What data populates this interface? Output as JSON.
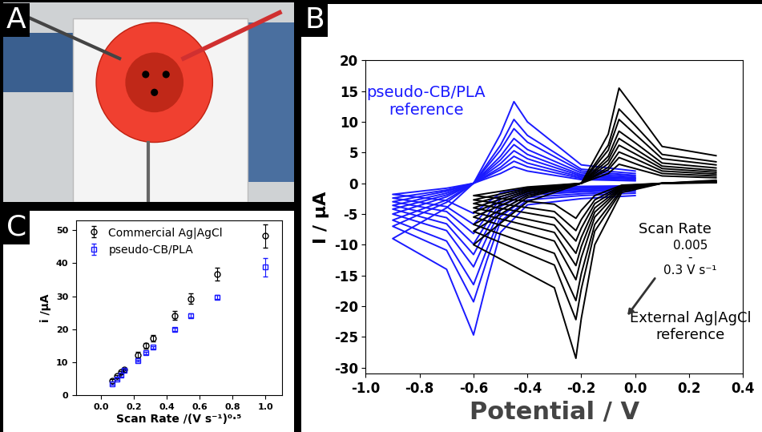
{
  "panel_labels": [
    "A",
    "B",
    "C"
  ],
  "chart_data": [
    {
      "type": "line",
      "x_label": "Potential / V",
      "y_label": "I / µA",
      "xlim": [
        -1.0,
        0.4
      ],
      "xticks": [
        -1.0,
        -0.8,
        -0.6,
        -0.4,
        -0.2,
        0.0,
        0.2,
        0.4
      ],
      "ylim": [
        -31,
        20
      ],
      "yticks": [
        -30,
        -25,
        -20,
        -15,
        -10,
        -5,
        0,
        5,
        10,
        15,
        20
      ],
      "annotations": [
        {
          "text": "pseudo-CB/PLA\nreference",
          "color": "#1a1aff"
        },
        {
          "text": "Scan Rate",
          "color": "#000000"
        },
        {
          "text": "0.005",
          "color": "#000000"
        },
        {
          "text": "-",
          "color": "#000000"
        },
        {
          "text": "0.3 V s⁻¹",
          "color": "#000000"
        },
        {
          "text": "External Ag|AgCl\nreference",
          "color": "#000000"
        }
      ],
      "series": [
        {
          "color": "#1a1aff",
          "x": [
            0.0,
            -0.2,
            -0.4,
            -0.5,
            -0.55,
            -0.6,
            -0.7,
            -0.9,
            -0.7,
            -0.6,
            -0.5,
            -0.45,
            -0.4,
            -0.2,
            0.0
          ],
          "values": [
            -0.4,
            -0.5,
            -0.7,
            -1.6,
            -3.2,
            -4.9,
            -2.8,
            -1.8,
            -0.8,
            0,
            1.6,
            2.7,
            2,
            0.6,
            0.4
          ]
        },
        {
          "color": "#1a1aff",
          "x": [
            0.0,
            -0.2,
            -0.4,
            -0.5,
            -0.55,
            -0.6,
            -0.7,
            -0.9,
            -0.7,
            -0.6,
            -0.5,
            -0.45,
            -0.4,
            -0.2,
            0.0
          ],
          "values": [
            -0.5,
            -0.7,
            -0.9,
            -2.2,
            -4.3,
            -6.7,
            -3.8,
            -2.4,
            -1.1,
            0,
            2.2,
            3.6,
            2.7,
            0.8,
            0.5
          ]
        },
        {
          "color": "#1a1aff",
          "x": [
            0.0,
            -0.2,
            -0.4,
            -0.5,
            -0.55,
            -0.6,
            -0.7,
            -0.9,
            -0.7,
            -0.6,
            -0.5,
            -0.45,
            -0.4,
            -0.2,
            0.0
          ],
          "values": [
            -0.7,
            -0.8,
            -1.2,
            -2.6,
            -5.3,
            -8.2,
            -4.6,
            -3,
            -1.3,
            0,
            2.6,
            4.4,
            3.3,
            1,
            0.7
          ]
        },
        {
          "color": "#1a1aff",
          "x": [
            0.0,
            -0.2,
            -0.4,
            -0.5,
            -0.55,
            -0.6,
            -0.7,
            -0.9,
            -0.7,
            -0.6,
            -0.5,
            -0.45,
            -0.4,
            -0.2,
            0.0
          ],
          "values": [
            -0.8,
            -1,
            -1.4,
            -3.2,
            -6.4,
            -9.9,
            -5.6,
            -3.6,
            -1.6,
            0,
            3.2,
            5.3,
            4,
            1.2,
            0.8
          ]
        },
        {
          "color": "#1a1aff",
          "x": [
            0.0,
            -0.2,
            -0.4,
            -0.5,
            -0.55,
            -0.6,
            -0.7,
            -0.9,
            -0.7,
            -0.6,
            -0.5,
            -0.45,
            -0.4,
            -0.2,
            0.0
          ],
          "values": [
            -0.9,
            -1.2,
            -1.6,
            -3.8,
            -7.5,
            -11.6,
            -6.6,
            -4.2,
            -1.9,
            0,
            3.8,
            6.3,
            4.7,
            1.4,
            0.9
          ]
        },
        {
          "color": "#1a1aff",
          "x": [
            0.0,
            -0.2,
            -0.4,
            -0.5,
            -0.55,
            -0.6,
            -0.7,
            -0.9,
            -0.7,
            -0.6,
            -0.5,
            -0.45,
            -0.4,
            -0.2,
            0.0
          ],
          "values": [
            -1.1,
            -1.4,
            -1.9,
            -4.4,
            -8.8,
            -13.6,
            -7.7,
            -5,
            -2.2,
            0,
            4.4,
            7.3,
            5.5,
            1.7,
            1.1
          ]
        },
        {
          "color": "#1a1aff",
          "x": [
            0.0,
            -0.2,
            -0.4,
            -0.5,
            -0.55,
            -0.6,
            -0.7,
            -0.9,
            -0.7,
            -0.6,
            -0.5,
            -0.45,
            -0.4,
            -0.2,
            0.0
          ],
          "values": [
            -1.3,
            -1.7,
            -2.3,
            -5.4,
            -10.7,
            -16.5,
            -9.4,
            -6,
            -2.7,
            0,
            5.4,
            8.9,
            6.7,
            2,
            1.3
          ]
        },
        {
          "color": "#1a1aff",
          "x": [
            0.0,
            -0.2,
            -0.4,
            -0.5,
            -0.55,
            -0.6,
            -0.7,
            -0.9,
            -0.7,
            -0.6,
            -0.5,
            -0.45,
            -0.4,
            -0.2,
            0.0
          ],
          "values": [
            -1.6,
            -2,
            -2.7,
            -6.2,
            -12.5,
            -19.3,
            -10.9,
            -7,
            -3.1,
            0,
            6.2,
            10.4,
            7.8,
            2.3,
            1.6
          ]
        },
        {
          "color": "#1a1aff",
          "x": [
            0.0,
            -0.2,
            -0.4,
            -0.5,
            -0.55,
            -0.6,
            -0.7,
            -0.9,
            -0.7,
            -0.6,
            -0.5,
            -0.45,
            -0.4,
            -0.2,
            0.0
          ],
          "values": [
            -2,
            -2.5,
            -3.5,
            -8,
            -16,
            -24.7,
            -14,
            -9,
            -4,
            0,
            8,
            13.3,
            10,
            3,
            2
          ]
        },
        {
          "color": "#000000",
          "x": [
            0.3,
            0.1,
            -0.05,
            -0.15,
            -0.2,
            -0.22,
            -0.3,
            -0.6,
            -0.4,
            -0.2,
            -0.1,
            -0.06,
            0.0,
            0.1,
            0.3
          ],
          "values": [
            0.1,
            0,
            -0.3,
            -2,
            -4.4,
            -5.7,
            -3.4,
            -2,
            -0.6,
            0,
            1.6,
            3.1,
            2.4,
            1.2,
            0.9
          ]
        },
        {
          "color": "#000000",
          "x": [
            0.3,
            0.1,
            -0.05,
            -0.15,
            -0.2,
            -0.22,
            -0.3,
            -0.6,
            -0.4,
            -0.2,
            -0.1,
            -0.06,
            0.0,
            0.1,
            0.3
          ],
          "values": [
            0.1,
            0,
            -0.4,
            -2.7,
            -5.9,
            -7.7,
            -4.6,
            -2.7,
            -0.8,
            0,
            2.2,
            4.2,
            3.2,
            1.6,
            1.2
          ]
        },
        {
          "color": "#000000",
          "x": [
            0.3,
            0.1,
            -0.05,
            -0.15,
            -0.2,
            -0.22,
            -0.3,
            -0.6,
            -0.4,
            -0.2,
            -0.1,
            -0.06,
            0.0,
            0.1,
            0.3
          ],
          "values": [
            0.2,
            0,
            -0.5,
            -3.3,
            -7.3,
            -9.4,
            -5.6,
            -3.3,
            -1,
            0,
            2.6,
            5.1,
            4,
            2,
            1.5
          ]
        },
        {
          "color": "#000000",
          "x": [
            0.3,
            0.1,
            -0.05,
            -0.15,
            -0.2,
            -0.22,
            -0.3,
            -0.6,
            -0.4,
            -0.2,
            -0.1,
            -0.06,
            0.0,
            0.1,
            0.3
          ],
          "values": [
            0.2,
            0,
            -0.6,
            -4,
            -8.8,
            -11.4,
            -6.8,
            -4,
            -1.2,
            0,
            3.2,
            6.2,
            4.8,
            2.4,
            1.8
          ]
        },
        {
          "color": "#000000",
          "x": [
            0.3,
            0.1,
            -0.05,
            -0.15,
            -0.2,
            -0.22,
            -0.3,
            -0.6,
            -0.4,
            -0.2,
            -0.1,
            -0.06,
            0.0,
            0.1,
            0.3
          ],
          "values": [
            0.2,
            0,
            -0.7,
            -4.7,
            -10.3,
            -13.4,
            -8,
            -4.7,
            -1.4,
            0,
            3.8,
            7.3,
            5.6,
            2.8,
            2.1
          ]
        },
        {
          "color": "#000000",
          "x": [
            0.3,
            0.1,
            -0.05,
            -0.15,
            -0.2,
            -0.22,
            -0.3,
            -0.6,
            -0.4,
            -0.2,
            -0.1,
            -0.06,
            0.0,
            0.1,
            0.3
          ],
          "values": [
            0.3,
            0,
            -0.8,
            -5.5,
            -12.1,
            -15.7,
            -9.4,
            -5.5,
            -1.7,
            0,
            4.4,
            8.5,
            6.6,
            3.3,
            2.5
          ]
        },
        {
          "color": "#000000",
          "x": [
            0.3,
            0.1,
            -0.05,
            -0.15,
            -0.2,
            -0.22,
            -0.3,
            -0.6,
            -0.4,
            -0.2,
            -0.1,
            -0.06,
            0.0,
            0.1,
            0.3
          ],
          "values": [
            0.3,
            0,
            -1,
            -6.7,
            -14.7,
            -19.1,
            -11.4,
            -6.7,
            -2,
            0,
            5.4,
            10.4,
            8,
            4,
            3
          ]
        },
        {
          "color": "#000000",
          "x": [
            0.3,
            0.1,
            -0.05,
            -0.15,
            -0.2,
            -0.22,
            -0.3,
            -0.6,
            -0.4,
            -0.2,
            -0.1,
            -0.06,
            0.0,
            0.1,
            0.3
          ],
          "values": [
            0.4,
            0,
            -1.2,
            -7.8,
            -17.2,
            -22.2,
            -13.3,
            -7.8,
            -2.3,
            0,
            6.2,
            12.1,
            9.4,
            4.7,
            3.5
          ]
        },
        {
          "color": "#000000",
          "x": [
            0.3,
            0.1,
            -0.05,
            -0.15,
            -0.2,
            -0.22,
            -0.3,
            -0.6,
            -0.4,
            -0.2,
            -0.1,
            -0.06,
            0.0,
            0.1,
            0.3
          ],
          "values": [
            0.5,
            0,
            -1.5,
            -10,
            -22,
            -28.5,
            -17,
            -10,
            -3,
            0,
            8,
            15.5,
            12,
            6,
            4.5
          ]
        }
      ]
    },
    {
      "type": "scatter",
      "x_label": "Scan Rate /(V s⁻¹)⁰·⁵",
      "y_label": "i /µA",
      "xlim": [
        -0.15,
        1.1
      ],
      "xticks": [
        0.0,
        0.2,
        0.4,
        0.6,
        0.8,
        1.0
      ],
      "ylim": [
        0,
        53
      ],
      "yticks": [
        0,
        10,
        20,
        30,
        40,
        50
      ],
      "legend": "upper left",
      "x": [
        0.071,
        0.1,
        0.122,
        0.141,
        0.224,
        0.274,
        0.316,
        0.447,
        0.548,
        0.707,
        1.0
      ],
      "series": [
        {
          "name": "Commercial Ag|AgCl",
          "color": "#000000",
          "marker": "circle",
          "values": [
            4.5,
            5.8,
            7.0,
            7.8,
            12.3,
            15.0,
            17.3,
            24.2,
            29.3,
            36.7,
            48.3
          ],
          "errors": [
            0.3,
            0.3,
            0.3,
            0.3,
            0.8,
            0.8,
            0.9,
            1.3,
            1.6,
            1.9,
            3.5
          ]
        },
        {
          "name": "pseudo-CB/PLA",
          "color": "#1a1aff",
          "marker": "square",
          "values": [
            3.5,
            5.0,
            6.0,
            7.5,
            10.5,
            12.8,
            14.5,
            20.0,
            24.2,
            29.7,
            38.8
          ],
          "errors": [
            0.3,
            0.3,
            0.3,
            0.3,
            0.3,
            0.3,
            0.3,
            0.5,
            0.6,
            0.6,
            2.8
          ]
        }
      ]
    }
  ]
}
